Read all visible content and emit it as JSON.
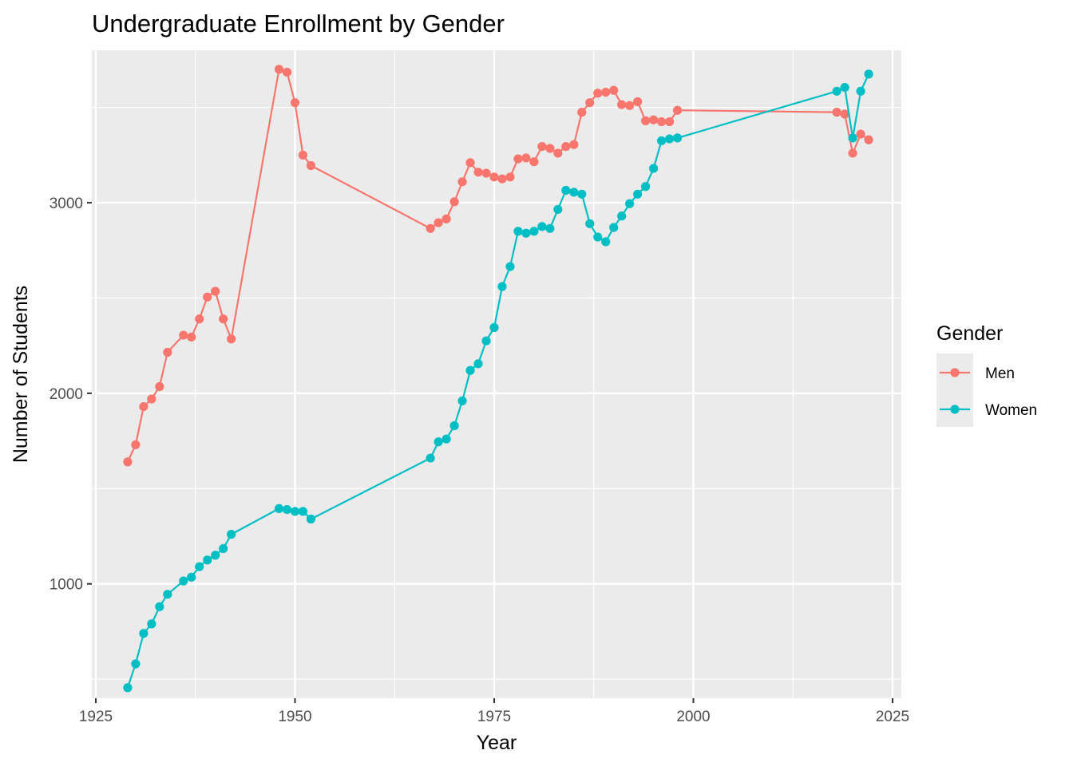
{
  "chart_data": {
    "type": "line",
    "title": "Undergraduate Enrollment by Gender",
    "xlabel": "Year",
    "ylabel": "Number of Students",
    "xlim": [
      1925,
      2025
    ],
    "ylim": [
      400,
      3800
    ],
    "x_ticks": [
      1925,
      1950,
      1975,
      2000,
      2025
    ],
    "y_ticks": [
      1000,
      2000,
      3000
    ],
    "grid": true,
    "legend": {
      "title": "Gender",
      "position": "right"
    },
    "series": [
      {
        "name": "Men",
        "color": "#F8766D",
        "points": [
          [
            1929,
            1640
          ],
          [
            1930,
            1730
          ],
          [
            1931,
            1930
          ],
          [
            1932,
            1970
          ],
          [
            1933,
            2035
          ],
          [
            1934,
            2215
          ],
          [
            1936,
            2305
          ],
          [
            1937,
            2295
          ],
          [
            1938,
            2390
          ],
          [
            1939,
            2505
          ],
          [
            1940,
            2535
          ],
          [
            1941,
            2390
          ],
          [
            1942,
            2285
          ],
          [
            1948,
            3700
          ],
          [
            1949,
            3685
          ],
          [
            1950,
            3525
          ],
          [
            1951,
            3250
          ],
          [
            1952,
            3195
          ],
          [
            1967,
            2865
          ],
          [
            1968,
            2895
          ],
          [
            1969,
            2915
          ],
          [
            1970,
            3005
          ],
          [
            1971,
            3110
          ],
          [
            1972,
            3210
          ],
          [
            1973,
            3160
          ],
          [
            1974,
            3155
          ],
          [
            1975,
            3135
          ],
          [
            1976,
            3125
          ],
          [
            1977,
            3135
          ],
          [
            1978,
            3230
          ],
          [
            1979,
            3235
          ],
          [
            1980,
            3215
          ],
          [
            1981,
            3295
          ],
          [
            1982,
            3285
          ],
          [
            1983,
            3260
          ],
          [
            1984,
            3295
          ],
          [
            1985,
            3305
          ],
          [
            1986,
            3475
          ],
          [
            1987,
            3525
          ],
          [
            1988,
            3575
          ],
          [
            1989,
            3580
          ],
          [
            1990,
            3590
          ],
          [
            1991,
            3515
          ],
          [
            1992,
            3510
          ],
          [
            1993,
            3530
          ],
          [
            1994,
            3430
          ],
          [
            1995,
            3435
          ],
          [
            1996,
            3425
          ],
          [
            1997,
            3425
          ],
          [
            1998,
            3485
          ],
          [
            2018,
            3475
          ],
          [
            2019,
            3465
          ],
          [
            2020,
            3260
          ],
          [
            2021,
            3360
          ],
          [
            2022,
            3330
          ]
        ]
      },
      {
        "name": "Women",
        "color": "#00BFC4",
        "points": [
          [
            1929,
            455
          ],
          [
            1930,
            580
          ],
          [
            1931,
            740
          ],
          [
            1932,
            790
          ],
          [
            1933,
            880
          ],
          [
            1934,
            945
          ],
          [
            1936,
            1015
          ],
          [
            1937,
            1035
          ],
          [
            1938,
            1090
          ],
          [
            1939,
            1125
          ],
          [
            1940,
            1150
          ],
          [
            1941,
            1185
          ],
          [
            1942,
            1260
          ],
          [
            1948,
            1395
          ],
          [
            1949,
            1390
          ],
          [
            1950,
            1380
          ],
          [
            1951,
            1380
          ],
          [
            1952,
            1340
          ],
          [
            1967,
            1660
          ],
          [
            1968,
            1745
          ],
          [
            1969,
            1760
          ],
          [
            1970,
            1830
          ],
          [
            1971,
            1960
          ],
          [
            1972,
            2120
          ],
          [
            1973,
            2155
          ],
          [
            1974,
            2275
          ],
          [
            1975,
            2345
          ],
          [
            1976,
            2560
          ],
          [
            1977,
            2665
          ],
          [
            1978,
            2850
          ],
          [
            1979,
            2840
          ],
          [
            1980,
            2850
          ],
          [
            1981,
            2875
          ],
          [
            1982,
            2865
          ],
          [
            1983,
            2965
          ],
          [
            1984,
            3065
          ],
          [
            1985,
            3055
          ],
          [
            1986,
            3045
          ],
          [
            1987,
            2890
          ],
          [
            1988,
            2820
          ],
          [
            1989,
            2795
          ],
          [
            1990,
            2870
          ],
          [
            1991,
            2930
          ],
          [
            1992,
            2995
          ],
          [
            1993,
            3045
          ],
          [
            1994,
            3085
          ],
          [
            1995,
            3180
          ],
          [
            1996,
            3325
          ],
          [
            1997,
            3335
          ],
          [
            1998,
            3340
          ],
          [
            2018,
            3585
          ],
          [
            2019,
            3605
          ],
          [
            2020,
            3340
          ],
          [
            2021,
            3585
          ],
          [
            2022,
            3675
          ]
        ]
      }
    ]
  }
}
